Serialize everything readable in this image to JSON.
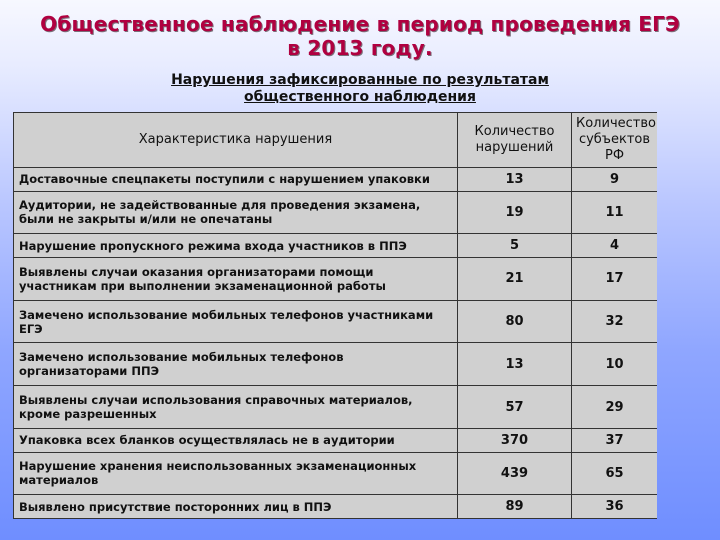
{
  "title": {
    "line1": "Общественное наблюдение в период проведения ЕГЭ",
    "line2": "в 2013 году."
  },
  "subtitle": {
    "line1": "Нарушения зафиксированные по результатам",
    "line2": "общественного наблюдения"
  },
  "table": {
    "headers": {
      "description": "Характеристика нарушения",
      "violations": "Количество нарушений",
      "subjects": "Количество субъектов РФ"
    },
    "rows": [
      {
        "description": "Доставочные спецпакеты поступили с нарушением упаковки",
        "violations": "13",
        "subjects": "9"
      },
      {
        "description": "Аудитории, не задействованные для проведения экзамена, были не закрыты и/или не опечатаны",
        "violations": "19",
        "subjects": "11"
      },
      {
        "description": "Нарушение пропускного режима входа участников в ППЭ",
        "violations": "5",
        "subjects": "4"
      },
      {
        "description": "Выявлены случаи оказания организаторами помощи участникам при выполнении экзаменационной работы",
        "violations": "21",
        "subjects": "17"
      },
      {
        "description": "Замечено использование мобильных телефонов участниками ЕГЭ",
        "violations": "80",
        "subjects": "32"
      },
      {
        "description": "Замечено использование мобильных телефонов организаторами ППЭ",
        "violations": "13",
        "subjects": "10"
      },
      {
        "description": "Выявлены случаи использования справочных материалов, кроме разрешенных",
        "violations": "57",
        "subjects": "29"
      },
      {
        "description": "Упаковка всех бланков осуществлялась не в аудитории",
        "violations": "370",
        "subjects": "37"
      },
      {
        "description": "Нарушение хранения неиспользованных экзаменационных материалов",
        "violations": "439",
        "subjects": "65"
      },
      {
        "description": "Выявлено присутствие посторонних лиц в ППЭ",
        "violations": "89",
        "subjects": "36"
      }
    ]
  }
}
